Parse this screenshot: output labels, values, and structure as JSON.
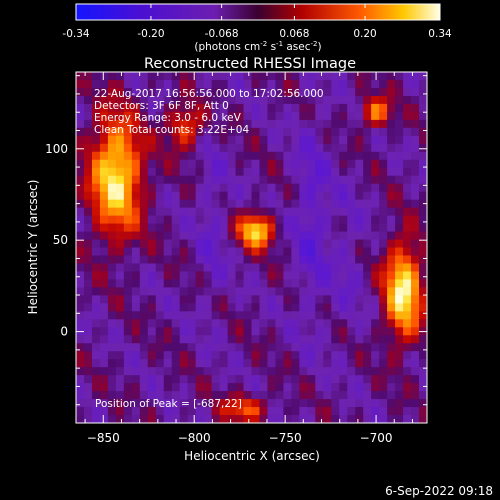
{
  "colorbar": {
    "ticks": [
      -0.34,
      -0.2,
      -0.068,
      0.068,
      0.2,
      0.34
    ],
    "tick_labels": [
      "-0.34",
      "-0.20",
      "-0.068",
      "0.068",
      "0.20",
      "0.34"
    ],
    "label_prefix": "(photons cm",
    "label_exp1": "-2",
    "label_mid": " s",
    "label_exp2": "-1",
    "label_mid2": " asec",
    "label_exp3": "-2",
    "label_suffix": ")"
  },
  "chart_data": {
    "type": "heatmap",
    "title": "Reconstructed RHESSI Image",
    "xlabel": "Heliocentric X (arcsec)",
    "ylabel": "Heliocentric Y (arcsec)",
    "xlim": [
      -865,
      -672
    ],
    "ylim": [
      -50,
      142
    ],
    "xticks": [
      -850,
      -800,
      -750,
      -700
    ],
    "yticks": [
      0,
      50,
      100
    ],
    "value_range": [
      -0.34,
      0.34
    ],
    "sources": [
      {
        "x": -843,
        "y": 85,
        "sx": 14,
        "sy": 32,
        "peak": 0.33
      },
      {
        "x": -805,
        "y": 112,
        "sx": 10,
        "sy": 12,
        "peak": 0.18
      },
      {
        "x": -766,
        "y": 55,
        "sx": 9,
        "sy": 9,
        "peak": 0.32
      },
      {
        "x": -700,
        "y": 120,
        "sx": 8,
        "sy": 8,
        "peak": 0.22
      },
      {
        "x": -685,
        "y": 22,
        "sx": 10,
        "sy": 26,
        "peak": 0.34
      },
      {
        "x": -772,
        "y": -42,
        "sx": 12,
        "sy": 7,
        "peak": 0.18
      }
    ],
    "annotations": [
      "22-Aug-2017 16:56:56.000 to 17:02:56.000",
      "Detectors: 3F 6F 8F, Att 0",
      "Energy Range: 3.0 - 6.0 keV",
      "Clean     Total counts: 3.22E+04"
    ],
    "peak_label": "Position of Peak = [-687,22]"
  },
  "footer": {
    "date": "6-Sep-2022 09:18"
  }
}
